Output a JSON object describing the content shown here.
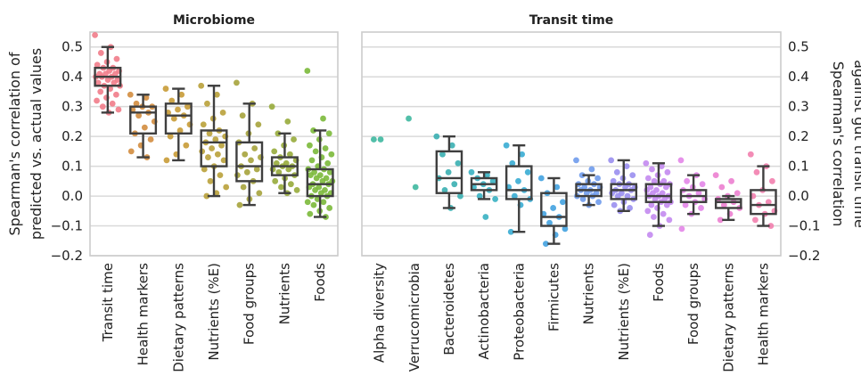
{
  "colors": {
    "box_stroke": "#3f3f3f",
    "grid": "#d9d9d9",
    "frame": "#cccccc"
  },
  "chart_data": [
    {
      "type": "box",
      "title": "Microbiome",
      "ylabel_lines": [
        "Spearman's correlation of",
        "predicted vs. actual values"
      ],
      "ylim": [
        -0.2,
        0.55
      ],
      "yticks": [
        -0.2,
        -0.1,
        0.0,
        0.1,
        0.2,
        0.3,
        0.4,
        0.5
      ],
      "ytick_labels": [
        "−0.2",
        "−0.1",
        "0.0",
        "0.1",
        "0.2",
        "0.3",
        "0.4",
        "0.5"
      ],
      "grid": true,
      "categories": [
        {
          "label": "Transit time",
          "color": "#f17c8a",
          "box": {
            "whislo": 0.28,
            "q1": 0.37,
            "med": 0.4,
            "q3": 0.43,
            "whishi": 0.5
          },
          "points": [
            0.54,
            0.5,
            0.48,
            0.46,
            0.45,
            0.44,
            0.43,
            0.43,
            0.42,
            0.42,
            0.41,
            0.41,
            0.41,
            0.4,
            0.4,
            0.4,
            0.39,
            0.39,
            0.38,
            0.38,
            0.37,
            0.37,
            0.36,
            0.35,
            0.34,
            0.33,
            0.32,
            0.31,
            0.3,
            0.29,
            0.28
          ]
        },
        {
          "label": "Health markers",
          "color": "#d38d3f",
          "box": {
            "whislo": 0.13,
            "q1": 0.21,
            "med": 0.28,
            "q3": 0.3,
            "whishi": 0.34
          },
          "points": [
            0.34,
            0.33,
            0.31,
            0.3,
            0.3,
            0.29,
            0.28,
            0.27,
            0.25,
            0.23,
            0.21,
            0.19,
            0.17,
            0.15,
            0.13
          ]
        },
        {
          "label": "Dietary patterns",
          "color": "#c89b36",
          "box": {
            "whislo": 0.12,
            "q1": 0.21,
            "med": 0.27,
            "q3": 0.31,
            "whishi": 0.36
          },
          "points": [
            0.36,
            0.34,
            0.32,
            0.3,
            0.29,
            0.28,
            0.27,
            0.26,
            0.24,
            0.22,
            0.2,
            0.17,
            0.14,
            0.12
          ]
        },
        {
          "label": "Nutrients (%E)",
          "color": "#b9a13a",
          "box": {
            "whislo": 0.0,
            "q1": 0.1,
            "med": 0.18,
            "q3": 0.22,
            "whishi": 0.37
          },
          "points": [
            0.37,
            0.34,
            0.31,
            0.28,
            0.26,
            0.24,
            0.22,
            0.21,
            0.2,
            0.19,
            0.18,
            0.17,
            0.16,
            0.15,
            0.14,
            0.13,
            0.12,
            0.1,
            0.09,
            0.07,
            0.05,
            0.03,
            0.01,
            0.0
          ]
        },
        {
          "label": "Food groups",
          "color": "#a6a33c",
          "box": {
            "whislo": -0.03,
            "q1": 0.05,
            "med": 0.1,
            "q3": 0.18,
            "whishi": 0.31
          },
          "points": [
            0.38,
            0.31,
            0.27,
            0.24,
            0.21,
            0.18,
            0.16,
            0.14,
            0.13,
            0.12,
            0.1,
            0.09,
            0.08,
            0.07,
            0.05,
            0.03,
            0.01,
            -0.01,
            -0.03
          ]
        },
        {
          "label": "Nutrients",
          "color": "#97ab3b",
          "box": {
            "whislo": 0.01,
            "q1": 0.07,
            "med": 0.1,
            "q3": 0.13,
            "whishi": 0.21
          },
          "points": [
            0.3,
            0.25,
            0.21,
            0.19,
            0.17,
            0.15,
            0.14,
            0.13,
            0.12,
            0.11,
            0.11,
            0.1,
            0.1,
            0.09,
            0.09,
            0.08,
            0.07,
            0.06,
            0.05,
            0.04,
            0.03,
            0.02,
            0.01
          ]
        },
        {
          "label": "Foods",
          "color": "#7bb93a",
          "box": {
            "whislo": -0.07,
            "q1": 0.0,
            "med": 0.04,
            "q3": 0.09,
            "whishi": 0.22
          },
          "points": [
            0.42,
            0.26,
            0.22,
            0.21,
            0.19,
            0.17,
            0.16,
            0.15,
            0.14,
            0.13,
            0.12,
            0.11,
            0.1,
            0.09,
            0.09,
            0.08,
            0.08,
            0.07,
            0.07,
            0.06,
            0.06,
            0.05,
            0.05,
            0.04,
            0.04,
            0.03,
            0.03,
            0.02,
            0.02,
            0.01,
            0.01,
            0.0,
            0.0,
            -0.01,
            -0.02,
            -0.02,
            -0.03,
            -0.04,
            -0.05,
            -0.06,
            -0.07
          ]
        }
      ]
    },
    {
      "type": "box",
      "title": "Transit time",
      "ylabel_lines": [
        "Spearman's correlation",
        "against gut transit time"
      ],
      "ylim": [
        -0.2,
        0.55
      ],
      "yticks": [
        -0.2,
        -0.1,
        0.0,
        0.1,
        0.2,
        0.3,
        0.4,
        0.5
      ],
      "ytick_labels": [
        "−0.2",
        "−0.1",
        "0.0",
        "0.1",
        "0.2",
        "0.3",
        "0.4",
        "0.5"
      ],
      "grid": true,
      "categories": [
        {
          "label": "Alpha diversity",
          "color": "#3fb8a0",
          "box": null,
          "points": [
            0.19,
            0.19
          ]
        },
        {
          "label": "Verrucomicrobia",
          "color": "#3fb8a0",
          "box": null,
          "points": [
            0.26,
            0.03
          ]
        },
        {
          "label": "Bacteroidetes",
          "color": "#3aafb1",
          "box": {
            "whislo": -0.04,
            "q1": 0.01,
            "med": 0.06,
            "q3": 0.15,
            "whishi": 0.2
          },
          "points": [
            0.2,
            0.17,
            0.14,
            0.11,
            0.08,
            0.06,
            0.04,
            0.02,
            0.0,
            -0.04
          ]
        },
        {
          "label": "Actinobacteria",
          "color": "#38b1c2",
          "box": {
            "whislo": -0.01,
            "q1": 0.02,
            "med": 0.04,
            "q3": 0.06,
            "whishi": 0.08
          },
          "points": [
            0.08,
            0.07,
            0.06,
            0.05,
            0.04,
            0.03,
            0.02,
            0.0,
            -0.01,
            -0.07
          ]
        },
        {
          "label": "Proteobacteria",
          "color": "#38acd3",
          "box": {
            "whislo": -0.12,
            "q1": -0.01,
            "med": 0.02,
            "q3": 0.1,
            "whishi": 0.17
          },
          "points": [
            0.17,
            0.14,
            0.11,
            0.08,
            0.05,
            0.03,
            0.02,
            0.0,
            -0.01,
            -0.03,
            -0.12
          ]
        },
        {
          "label": "Firmicutes",
          "color": "#42a2e0",
          "box": {
            "whislo": -0.16,
            "q1": -0.1,
            "med": -0.07,
            "q3": 0.01,
            "whishi": 0.06
          },
          "points": [
            0.06,
            0.03,
            0.01,
            -0.02,
            -0.04,
            -0.06,
            -0.07,
            -0.09,
            -0.11,
            -0.13,
            -0.16
          ]
        },
        {
          "label": "Nutrients",
          "color": "#6f9bec",
          "box": {
            "whislo": -0.03,
            "q1": 0.0,
            "med": 0.02,
            "q3": 0.04,
            "whishi": 0.07
          },
          "points": [
            0.12,
            0.09,
            0.07,
            0.06,
            0.05,
            0.04,
            0.04,
            0.03,
            0.03,
            0.02,
            0.02,
            0.01,
            0.01,
            0.0,
            0.0,
            -0.01,
            -0.02,
            -0.03
          ]
        },
        {
          "label": "Nutrients (%E)",
          "color": "#9a8ff0",
          "box": {
            "whislo": -0.05,
            "q1": -0.01,
            "med": 0.02,
            "q3": 0.04,
            "whishi": 0.12
          },
          "points": [
            0.12,
            0.1,
            0.08,
            0.07,
            0.06,
            0.05,
            0.04,
            0.04,
            0.03,
            0.03,
            0.02,
            0.02,
            0.01,
            0.01,
            0.0,
            0.0,
            -0.01,
            -0.02,
            -0.03,
            -0.04,
            -0.05
          ]
        },
        {
          "label": "Foods",
          "color": "#c38af0",
          "box": {
            "whislo": -0.1,
            "q1": -0.02,
            "med": 0.0,
            "q3": 0.04,
            "whishi": 0.11
          },
          "points": [
            0.11,
            0.1,
            0.09,
            0.08,
            0.07,
            0.06,
            0.05,
            0.05,
            0.04,
            0.04,
            0.03,
            0.03,
            0.02,
            0.02,
            0.01,
            0.01,
            0.0,
            0.0,
            0.0,
            -0.01,
            -0.01,
            -0.02,
            -0.02,
            -0.03,
            -0.03,
            -0.04,
            -0.05,
            -0.06,
            -0.07,
            -0.08,
            -0.1,
            -0.13
          ]
        },
        {
          "label": "Food groups",
          "color": "#e386e8",
          "box": {
            "whislo": -0.06,
            "q1": -0.02,
            "med": 0.0,
            "q3": 0.02,
            "whishi": 0.07
          },
          "points": [
            0.12,
            0.07,
            0.05,
            0.04,
            0.03,
            0.02,
            0.01,
            0.0,
            -0.01,
            -0.02,
            -0.03,
            -0.04,
            -0.06,
            -0.11
          ]
        },
        {
          "label": "Dietary patterns",
          "color": "#ec7fd0",
          "box": {
            "whislo": -0.08,
            "q1": -0.04,
            "med": -0.02,
            "q3": -0.01,
            "whishi": 0.0
          },
          "points": [
            0.07,
            0.05,
            0.03,
            0.01,
            0.0,
            -0.01,
            -0.02,
            -0.03,
            -0.04,
            -0.06,
            -0.08
          ]
        },
        {
          "label": "Health markers",
          "color": "#f27fae",
          "box": {
            "whislo": -0.1,
            "q1": -0.06,
            "med": -0.03,
            "q3": 0.02,
            "whishi": 0.1
          },
          "points": [
            0.14,
            0.1,
            0.08,
            0.05,
            0.02,
            0.0,
            -0.02,
            -0.03,
            -0.05,
            -0.06,
            -0.08,
            -0.1
          ]
        }
      ]
    }
  ]
}
